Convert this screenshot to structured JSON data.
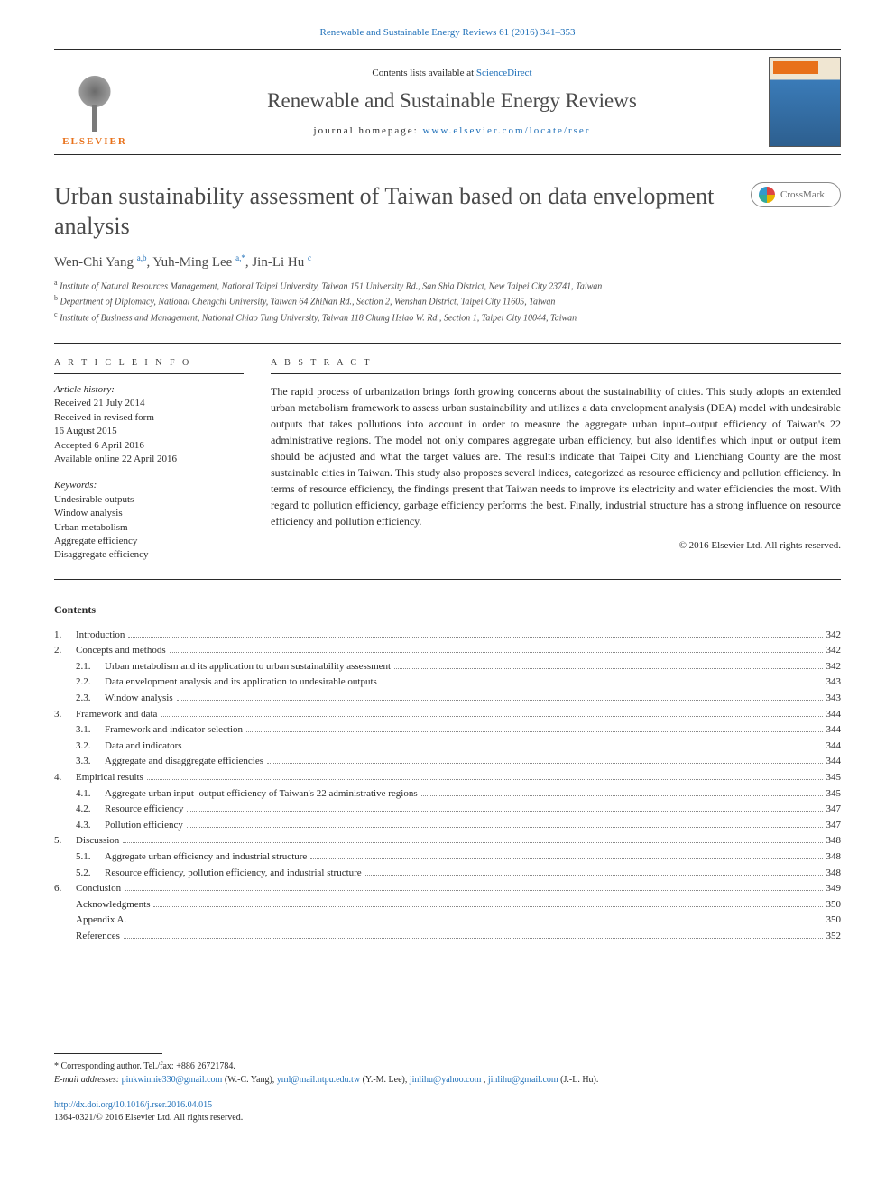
{
  "top_citation": "Renewable and Sustainable Energy Reviews 61 (2016) 341–353",
  "header": {
    "contents_prefix": "Contents lists available at ",
    "contents_link": "ScienceDirect",
    "journal_name": "Renewable and Sustainable Energy Reviews",
    "homepage_prefix": "journal homepage: ",
    "homepage_url": "www.elsevier.com/locate/rser",
    "elsevier_label": "ELSEVIER"
  },
  "crossmark": "CrossMark",
  "title": "Urban sustainability assessment of Taiwan based on data envelopment analysis",
  "authors_parts": {
    "a1": "Wen-Chi Yang",
    "s1": "a,b",
    "a2": "Yuh-Ming Lee",
    "s2": "a,*",
    "a3": "Jin-Li Hu",
    "s3": "c"
  },
  "affiliations": {
    "a": "Institute of Natural Resources Management, National Taipei University, Taiwan 151 University Rd., San Shia District, New Taipei City 23741, Taiwan",
    "b": "Department of Diplomacy, National Chengchi University, Taiwan 64 ZhiNan Rd., Section 2, Wenshan District, Taipei City 11605, Taiwan",
    "c": "Institute of Business and Management, National Chiao Tung University, Taiwan 118 Chung Hsiao W. Rd., Section 1, Taipei City 10044, Taiwan"
  },
  "info_head": "A R T I C L E  I N F O",
  "abstract_head": "A B S T R A C T",
  "history": {
    "label": "Article history:",
    "lines": [
      "Received 21 July 2014",
      "Received in revised form",
      "16 August 2015",
      "Accepted 6 April 2016",
      "Available online 22 April 2016"
    ]
  },
  "keywords": {
    "label": "Keywords:",
    "items": [
      "Undesirable outputs",
      "Window analysis",
      "Urban metabolism",
      "Aggregate efficiency",
      "Disaggregate efficiency"
    ]
  },
  "abstract": "The rapid process of urbanization brings forth growing concerns about the sustainability of cities. This study adopts an extended urban metabolism framework to assess urban sustainability and utilizes a data envelopment analysis (DEA) model with undesirable outputs that takes pollutions into account in order to measure the aggregate urban input–output efficiency of Taiwan's 22 administrative regions. The model not only compares aggregate urban efficiency, but also identifies which input or output item should be adjusted and what the target values are. The results indicate that Taipei City and Lienchiang County are the most sustainable cities in Taiwan. This study also proposes several indices, categorized as resource efficiency and pollution efficiency. In terms of resource efficiency, the findings present that Taiwan needs to improve its electricity and water efficiencies the most. With regard to pollution efficiency, garbage efficiency performs the best. Finally, industrial structure has a strong influence on resource efficiency and pollution efficiency.",
  "copyright": "© 2016 Elsevier Ltd. All rights reserved.",
  "contents_heading": "Contents",
  "toc": [
    {
      "n": "1.",
      "t": "Introduction",
      "p": "342"
    },
    {
      "n": "2.",
      "t": "Concepts and methods",
      "p": "342"
    },
    {
      "n": "2.1.",
      "t": "Urban metabolism and its application to urban sustainability assessment",
      "p": "342",
      "sub": true
    },
    {
      "n": "2.2.",
      "t": "Data envelopment analysis and its application to undesirable outputs",
      "p": "343",
      "sub": true
    },
    {
      "n": "2.3.",
      "t": "Window analysis",
      "p": "343",
      "sub": true
    },
    {
      "n": "3.",
      "t": "Framework and data",
      "p": "344"
    },
    {
      "n": "3.1.",
      "t": "Framework and indicator selection",
      "p": "344",
      "sub": true
    },
    {
      "n": "3.2.",
      "t": "Data and indicators",
      "p": "344",
      "sub": true
    },
    {
      "n": "3.3.",
      "t": "Aggregate and disaggregate efficiencies",
      "p": "344",
      "sub": true
    },
    {
      "n": "4.",
      "t": "Empirical results",
      "p": "345"
    },
    {
      "n": "4.1.",
      "t": "Aggregate urban input–output efficiency of Taiwan's 22 administrative regions",
      "p": "345",
      "sub": true
    },
    {
      "n": "4.2.",
      "t": "Resource efficiency",
      "p": "347",
      "sub": true
    },
    {
      "n": "4.3.",
      "t": "Pollution efficiency",
      "p": "347",
      "sub": true
    },
    {
      "n": "5.",
      "t": "Discussion",
      "p": "348"
    },
    {
      "n": "5.1.",
      "t": "Aggregate urban efficiency and industrial structure",
      "p": "348",
      "sub": true
    },
    {
      "n": "5.2.",
      "t": "Resource efficiency, pollution efficiency, and industrial structure",
      "p": "348",
      "sub": true
    },
    {
      "n": "6.",
      "t": "Conclusion",
      "p": "349"
    },
    {
      "n": "",
      "t": "Acknowledgments",
      "p": "350"
    },
    {
      "n": "",
      "t": "Appendix A.",
      "p": "350"
    },
    {
      "n": "",
      "t": "References",
      "p": "352"
    }
  ],
  "footnotes": {
    "corr": "* Corresponding author. Tel./fax: +886 26721784.",
    "email_label": "E-mail addresses: ",
    "emails": [
      {
        "addr": "pinkwinnie330@gmail.com",
        "who": "(W.-C. Yang)"
      },
      {
        "addr": "yml@mail.ntpu.edu.tw",
        "who": "(Y.-M. Lee)"
      },
      {
        "addr": "jinlihu@yahoo.com",
        "who": ""
      },
      {
        "addr": "jinlihu@gmail.com",
        "who": "(J.-L. Hu)."
      }
    ]
  },
  "doi": {
    "url": "http://dx.doi.org/10.1016/j.rser.2016.04.015",
    "issn_line": "1364-0321/© 2016 Elsevier Ltd. All rights reserved."
  }
}
